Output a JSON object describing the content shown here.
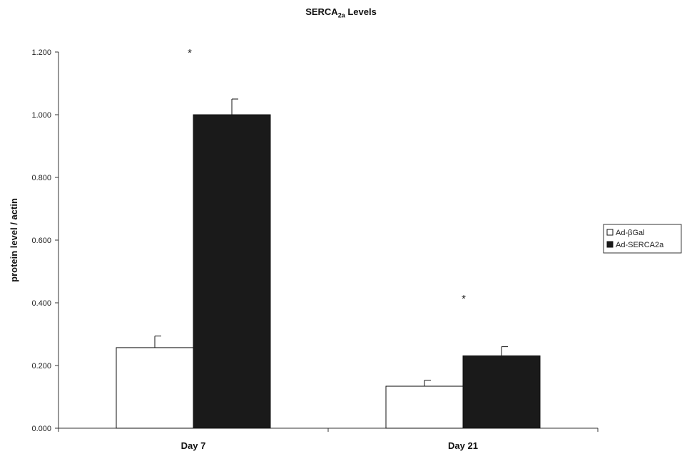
{
  "chart_data": {
    "type": "bar",
    "title_main": "SERCA",
    "title_sub": "2a",
    "title_rest": " Levels",
    "ylabel": "protein level / actin",
    "xlabel": "",
    "categories": [
      "Day 7",
      "Day 21"
    ],
    "ylim": [
      0,
      1.2
    ],
    "yticks": [
      "0.000",
      "0.200",
      "0.400",
      "0.600",
      "0.800",
      "1.000",
      "1.200"
    ],
    "ytick_values": [
      0,
      0.2,
      0.4,
      0.6,
      0.8,
      1.0,
      1.2
    ],
    "series": [
      {
        "name": "Ad-βGal",
        "values": [
          0.257,
          0.134
        ],
        "errors": [
          0.037,
          0.019
        ],
        "color": "#ffffff"
      },
      {
        "name": "Ad-SERCA2a",
        "values": [
          1.0,
          0.231
        ],
        "errors": [
          0.05,
          0.029
        ],
        "color": "#1a1a1a"
      }
    ],
    "annotations": [
      "*",
      "*"
    ],
    "legend_position": "right",
    "grid": false
  }
}
